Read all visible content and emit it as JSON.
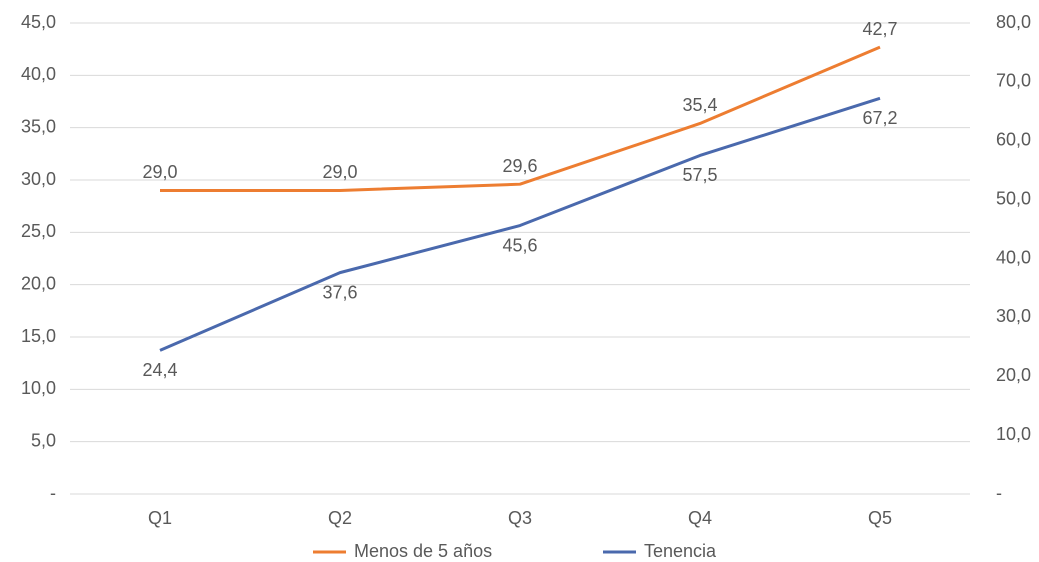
{
  "chart_data": {
    "type": "line",
    "categories": [
      "Q1",
      "Q2",
      "Q3",
      "Q4",
      "Q5"
    ],
    "series": [
      {
        "name": "Menos de 5 años",
        "color": "#ed7d31",
        "values": [
          29.0,
          29.0,
          29.6,
          35.4,
          42.7
        ],
        "value_labels": [
          "29,0",
          "29,0",
          "29,6",
          "35,4",
          "42,7"
        ]
      },
      {
        "name": "Tenencia",
        "color": "#4a69ad",
        "axis": "y2",
        "values": [
          24.4,
          37.6,
          45.6,
          57.5,
          67.2
        ],
        "value_labels": [
          "24,4",
          "37,6",
          "45,6",
          "57,5",
          "67,2"
        ]
      }
    ],
    "ylim": [
      0,
      45
    ],
    "yticks": [
      {
        "value": 0,
        "label": "-"
      },
      {
        "value": 5,
        "label": "5,0"
      },
      {
        "value": 10,
        "label": "10,0"
      },
      {
        "value": 15,
        "label": "15,0"
      },
      {
        "value": 20,
        "label": "20,0"
      },
      {
        "value": 25,
        "label": "25,0"
      },
      {
        "value": 30,
        "label": "30,0"
      },
      {
        "value": 35,
        "label": "35,0"
      },
      {
        "value": 40,
        "label": "40,0"
      },
      {
        "value": 45,
        "label": "45,0"
      }
    ],
    "y2lim": [
      0,
      80
    ],
    "y2ticks": [
      {
        "value": 0,
        "label": "-"
      },
      {
        "value": 10,
        "label": "10,0"
      },
      {
        "value": 20,
        "label": "20,0"
      },
      {
        "value": 30,
        "label": "30,0"
      },
      {
        "value": 40,
        "label": "40,0"
      },
      {
        "value": 50,
        "label": "50,0"
      },
      {
        "value": 60,
        "label": "60,0"
      },
      {
        "value": 70,
        "label": "70,0"
      },
      {
        "value": 80,
        "label": "80,0"
      }
    ],
    "grid": true,
    "legend": "bottom"
  }
}
